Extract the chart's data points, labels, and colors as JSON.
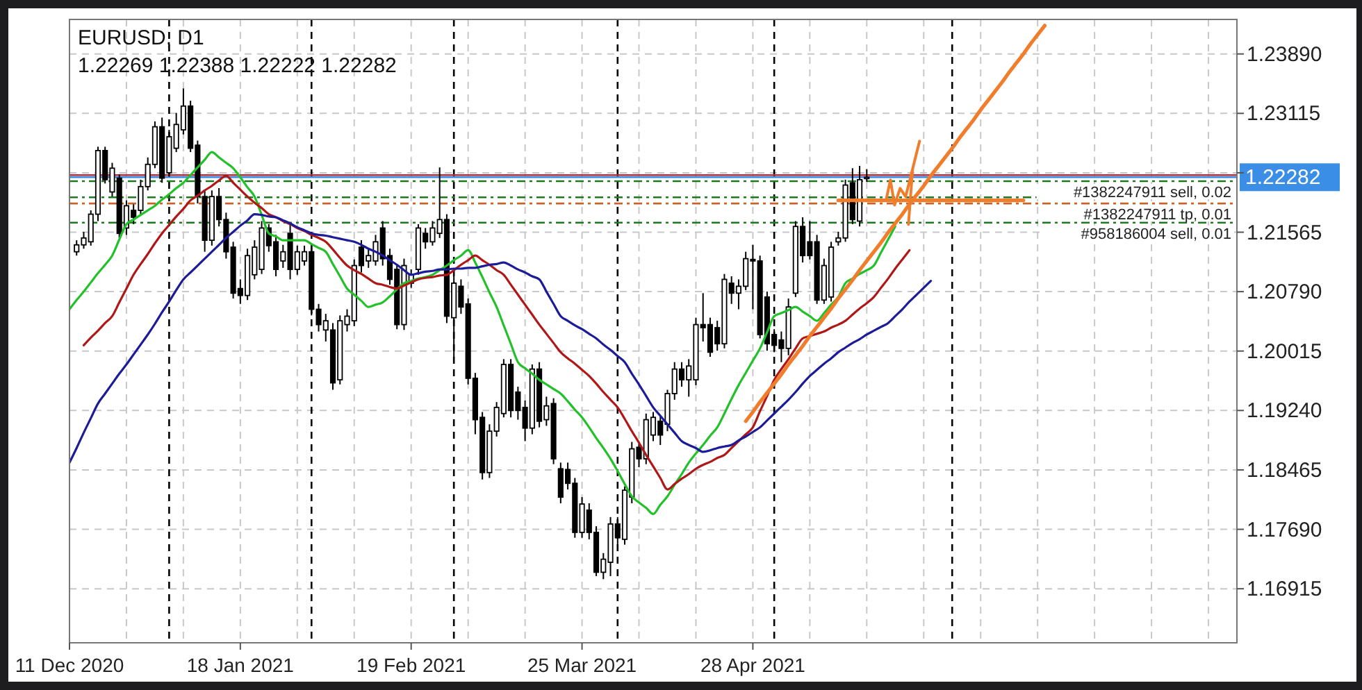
{
  "chart_data": {
    "type": "candlestick",
    "title": "EURUSD, D1",
    "subtitle": "1.22269 1.22388 1.22222 1.22282",
    "categories": [
      "11 Dec 2020",
      null,
      null,
      null,
      null,
      null,
      null,
      null,
      null,
      null,
      null,
      null,
      null,
      null,
      null,
      null,
      null,
      null,
      null,
      null,
      null,
      null,
      null,
      null,
      "18 Jan 2021",
      null,
      null,
      null,
      null,
      null,
      null,
      null,
      null,
      null,
      null,
      null,
      null,
      null,
      null,
      null,
      null,
      null,
      null,
      null,
      null,
      null,
      null,
      null,
      "19 Feb 2021",
      null,
      null,
      null,
      null,
      null,
      null,
      null,
      null,
      null,
      null,
      null,
      null,
      null,
      null,
      null,
      null,
      null,
      null,
      null,
      null,
      null,
      null,
      null,
      "25 Mar 2021",
      null,
      null,
      null,
      null,
      null,
      null,
      null,
      null,
      null,
      null,
      null,
      null,
      null,
      null,
      null,
      null,
      null,
      null,
      null,
      null,
      null,
      null,
      null,
      "28 Apr 2021",
      null,
      null,
      null,
      null,
      null,
      null,
      null,
      null,
      null,
      null,
      null,
      null,
      null,
      null,
      null,
      null,
      null,
      null,
      null,
      null,
      null,
      null,
      null,
      null,
      null,
      null,
      null,
      null,
      null,
      null,
      null,
      null,
      null,
      null,
      null,
      null,
      null,
      null,
      null,
      null,
      null,
      null,
      null,
      null,
      null,
      null,
      null,
      null,
      null,
      null,
      null,
      null,
      null,
      null,
      null,
      null,
      null,
      null,
      null,
      null,
      null,
      null,
      null,
      null,
      null,
      null,
      null,
      null
    ],
    "ohlc": [
      null,
      [
        1.2131,
        1.2146,
        1.2126,
        1.214
      ],
      [
        1.214,
        1.2157,
        1.2135,
        1.2149
      ],
      [
        1.2144,
        1.2185,
        1.2139,
        1.218
      ],
      [
        1.218,
        1.2268,
        1.2171,
        1.2263
      ],
      [
        1.2263,
        1.2268,
        1.222,
        1.2225
      ],
      [
        1.2209,
        1.2247,
        1.2203,
        1.224
      ],
      [
        1.2227,
        1.2232,
        1.2149,
        1.2155
      ],
      [
        1.2162,
        1.2198,
        1.2153,
        1.2191
      ],
      [
        1.2185,
        1.2193,
        1.2167,
        1.2176
      ],
      [
        1.2185,
        1.2225,
        1.218,
        1.2216
      ],
      [
        1.2216,
        1.2254,
        1.2211,
        1.2245
      ],
      [
        1.2245,
        1.2301,
        1.224,
        1.2294
      ],
      [
        1.2294,
        1.2306,
        1.2221,
        1.2227
      ],
      [
        1.2234,
        1.229,
        1.2229,
        1.2281
      ],
      [
        1.2266,
        1.2312,
        1.2261,
        1.2297
      ],
      [
        1.229,
        1.2344,
        1.2284,
        1.2321
      ],
      [
        1.2321,
        1.2328,
        1.2261,
        1.2266
      ],
      [
        1.227,
        1.2276,
        1.2194,
        1.2203
      ],
      [
        1.2203,
        1.2212,
        1.2131,
        1.2146
      ],
      [
        1.2146,
        1.2211,
        1.2139,
        1.2203
      ],
      [
        1.2203,
        1.2214,
        1.2164,
        1.2173
      ],
      [
        1.2173,
        1.2182,
        1.2122,
        1.2131
      ],
      [
        1.2137,
        1.2144,
        1.207,
        1.2077
      ],
      [
        1.2083,
        1.2095,
        1.2063,
        1.2074
      ],
      [
        1.2074,
        1.2135,
        1.2068,
        1.2126
      ],
      [
        1.2101,
        1.2146,
        1.2095,
        1.2137
      ],
      [
        1.2108,
        1.2171,
        1.2102,
        1.2162
      ],
      [
        1.2162,
        1.2167,
        1.2131,
        1.2139
      ],
      [
        1.2144,
        1.2153,
        1.2099,
        1.2108
      ],
      [
        1.2119,
        1.214,
        1.211,
        1.2131
      ],
      [
        1.2155,
        1.2167,
        1.2095,
        1.2108
      ],
      [
        1.2108,
        1.2139,
        1.2101,
        1.2131
      ],
      [
        1.2119,
        1.2139,
        1.2113,
        1.2131
      ],
      [
        1.2131,
        1.214,
        1.2048,
        1.2056
      ],
      [
        1.2056,
        1.2063,
        1.2027,
        1.2036
      ],
      [
        1.2029,
        1.205,
        1.2014,
        1.2041
      ],
      [
        1.2029,
        1.2038,
        1.1951,
        1.196
      ],
      [
        1.1964,
        1.2048,
        1.1958,
        1.2041
      ],
      [
        1.2036,
        1.2056,
        1.2027,
        1.2047
      ],
      [
        1.2041,
        1.2121,
        1.2034,
        1.2113
      ],
      [
        1.2137,
        1.2146,
        1.2104,
        1.2113
      ],
      [
        1.2119,
        1.2135,
        1.211,
        1.2126
      ],
      [
        1.2119,
        1.2153,
        1.2113,
        1.2144
      ],
      [
        1.2162,
        1.2171,
        1.2113,
        1.2122
      ],
      [
        1.2126,
        1.2135,
        1.2088,
        1.2095
      ],
      [
        1.2108,
        1.2115,
        1.203,
        1.2036
      ],
      [
        1.2036,
        1.2122,
        1.2029,
        1.2113
      ],
      [
        1.209,
        1.2108,
        1.2084,
        1.2101
      ],
      [
        1.2108,
        1.2167,
        1.2101,
        1.2162
      ],
      [
        1.2155,
        1.2162,
        1.2135,
        1.2144
      ],
      [
        1.2144,
        1.2171,
        1.2139,
        1.2162
      ],
      [
        1.2155,
        1.2241,
        1.2149,
        1.2173
      ],
      [
        1.2173,
        1.218,
        1.2038,
        1.2047
      ],
      [
        1.2045,
        1.2099,
        1.1993,
        1.209
      ],
      [
        1.2086,
        1.2095,
        1.205,
        1.2059
      ],
      [
        1.2063,
        1.207,
        1.1958,
        1.1966
      ],
      [
        1.1966,
        1.1973,
        1.1893,
        1.1912
      ],
      [
        1.1915,
        1.1922,
        1.1834,
        1.1843
      ],
      [
        1.1843,
        1.1906,
        1.1836,
        1.1897
      ],
      [
        1.1897,
        1.1935,
        1.189,
        1.1928
      ],
      [
        1.192,
        1.1991,
        1.1915,
        1.1984
      ],
      [
        1.1984,
        1.1991,
        1.1915,
        1.1924
      ],
      [
        1.1948,
        1.1955,
        1.1912,
        1.1924
      ],
      [
        1.1928,
        1.1937,
        1.1884,
        1.1901
      ],
      [
        1.1901,
        1.1984,
        1.1893,
        1.1978
      ],
      [
        1.1978,
        1.1987,
        1.1902,
        1.191
      ],
      [
        1.1912,
        1.1942,
        1.1904,
        1.193
      ],
      [
        1.1933,
        1.194,
        1.1854,
        1.1861
      ],
      [
        1.1848,
        1.1856,
        1.1803,
        1.1811
      ],
      [
        1.1847,
        1.1856,
        1.1821,
        1.1829
      ],
      [
        1.1829,
        1.1836,
        1.1758,
        1.1765
      ],
      [
        1.1765,
        1.1811,
        1.1758,
        1.1802
      ],
      [
        1.1794,
        1.1803,
        1.1756,
        1.1765
      ],
      [
        1.1765,
        1.1773,
        1.1708,
        1.1713
      ],
      [
        1.1713,
        1.1738,
        1.1704,
        1.173
      ],
      [
        1.1726,
        1.1785,
        1.1708,
        1.1776
      ],
      [
        1.1776,
        1.1785,
        1.1749,
        1.1758
      ],
      [
        1.1756,
        1.1825,
        1.1749,
        1.182
      ],
      [
        1.1811,
        1.1883,
        1.1803,
        1.1874
      ],
      [
        1.1876,
        1.1883,
        1.185,
        1.1861
      ],
      [
        1.1861,
        1.192,
        1.1854,
        1.1912
      ],
      [
        1.1892,
        1.1922,
        1.1884,
        1.1915
      ],
      [
        1.191,
        1.1917,
        1.1879,
        1.1892
      ],
      [
        1.1906,
        1.1951,
        1.1897,
        1.1946
      ],
      [
        1.1946,
        1.1987,
        1.1938,
        1.1978
      ],
      [
        1.1978,
        1.1987,
        1.1955,
        1.1964
      ],
      [
        1.1964,
        1.1991,
        1.1942,
        1.1982
      ],
      [
        1.1964,
        1.2045,
        1.1957,
        1.2036
      ],
      [
        1.2036,
        1.2077,
        1.2014,
        1.2032
      ],
      [
        1.2036,
        1.2045,
        1.1994,
        1.2
      ],
      [
        1.2032,
        1.2041,
        1.2002,
        1.2011
      ],
      [
        1.2011,
        1.2102,
        1.2005,
        1.2095
      ],
      [
        1.209,
        1.2099,
        1.2063,
        1.2077
      ],
      [
        1.2077,
        1.2095,
        1.2056,
        1.2086
      ],
      [
        1.2086,
        1.2131,
        1.2081,
        1.2122
      ],
      [
        1.2121,
        1.214,
        1.2056,
        1.2119
      ],
      [
        1.2119,
        1.2126,
        1.2018,
        1.2023
      ],
      [
        1.2072,
        1.2079,
        1.2002,
        1.2011
      ],
      [
        1.2023,
        1.203,
        1.2,
        1.2009
      ],
      [
        1.2016,
        1.2027,
        1.1987,
        1.2005
      ],
      [
        1.2005,
        1.207,
        1.1996,
        1.2059
      ],
      [
        1.2077,
        1.2171,
        1.2072,
        1.2164
      ],
      [
        1.2164,
        1.2176,
        1.2117,
        1.2126
      ],
      [
        1.2144,
        1.2171,
        1.2121,
        1.2126
      ],
      [
        1.2144,
        1.2153,
        1.2063,
        1.2068
      ],
      [
        1.2068,
        1.2122,
        1.2063,
        1.2113
      ],
      [
        1.2072,
        1.2144,
        1.2066,
        1.2137
      ],
      [
        1.2144,
        1.2157,
        1.2139,
        1.2149
      ],
      [
        1.2149,
        1.2225,
        1.2144,
        1.2218
      ],
      [
        1.2221,
        1.224,
        1.2167,
        1.2173
      ],
      [
        1.2171,
        1.2243,
        1.2164,
        1.2225
      ],
      [
        1.22269,
        1.22388,
        1.22222,
        1.22282
      ],
      null,
      null,
      null,
      null,
      null,
      null,
      null,
      null,
      null,
      null,
      null,
      null,
      null,
      null,
      null,
      null,
      null,
      null,
      null,
      null,
      null,
      null,
      null,
      null,
      null,
      null,
      null,
      null,
      null,
      null,
      null,
      null,
      null,
      null,
      null,
      null,
      null,
      null,
      null,
      null,
      null,
      null,
      null,
      null,
      null,
      null,
      null,
      null,
      null,
      null,
      null,
      null
    ],
    "series": [
      {
        "type": "line",
        "color": "#22c12a",
        "values": [
          1.2056,
          1.2068,
          1.2079,
          1.2091,
          1.2103,
          1.2114,
          1.2126,
          1.2147,
          1.2167,
          1.2173,
          1.2179,
          1.2185,
          1.2191,
          1.2199,
          1.2206,
          1.2214,
          1.2221,
          1.2231,
          1.2241,
          1.2251,
          1.2261,
          1.2254,
          1.2247,
          1.224,
          1.2228,
          1.2215,
          1.2203,
          1.2179,
          1.2155,
          1.2151,
          1.2146,
          1.2146,
          1.2146,
          1.2146,
          1.2141,
          1.2136,
          1.2131,
          1.2115,
          1.2099,
          1.2083,
          1.2075,
          1.2067,
          1.2059,
          1.2062,
          1.2065,
          1.2073,
          1.2082,
          1.209,
          1.2093,
          1.2096,
          1.2098,
          1.2101,
          1.2107,
          1.2113,
          1.212,
          1.2126,
          1.2133,
          1.2117,
          1.2098,
          1.2078,
          1.2059,
          1.2035,
          1.2011,
          1.1987,
          1.1979,
          1.1972,
          1.1964,
          1.1958,
          1.1952,
          1.1946,
          1.1936,
          1.1925,
          1.1915,
          1.1902,
          1.1888,
          1.1875,
          1.1861,
          1.1845,
          1.1828,
          1.1812,
          1.1804,
          1.1797,
          1.1789,
          1.1801,
          1.1812,
          1.1827,
          1.1841,
          1.1856,
          1.1868,
          1.1879,
          1.1891,
          1.1902,
          1.192,
          1.1939,
          1.1957,
          1.1973,
          1.1989,
          1.2005,
          1.2026,
          1.2047,
          1.2051,
          1.2055,
          1.2059,
          1.2053,
          1.2047,
          1.2041,
          1.2051,
          1.2062,
          1.2072,
          1.209,
          1.2096,
          1.2102,
          1.2107,
          1.2113,
          1.213,
          1.2147,
          1.2164,
          null,
          null,
          null,
          null,
          null,
          null,
          null,
          null,
          null,
          null,
          null,
          null,
          null,
          null,
          null,
          null,
          null,
          null,
          null,
          null,
          null,
          null,
          null,
          null,
          null,
          null,
          null,
          null,
          null,
          null,
          null,
          null,
          null,
          null,
          null,
          null,
          null,
          null,
          null,
          null,
          null,
          null,
          null,
          null,
          null,
          null,
          null,
          null
        ]
      },
      {
        "type": "line",
        "color": "#b01818",
        "values": [
          null,
          null,
          1.2009,
          1.2019,
          1.2028,
          1.2038,
          1.2047,
          1.2065,
          1.2083,
          1.2101,
          1.2115,
          1.2128,
          1.2142,
          1.2155,
          1.2166,
          1.2177,
          1.2187,
          1.2198,
          1.2204,
          1.2211,
          1.2217,
          1.2224,
          1.223,
          1.2221,
          1.2212,
          1.2203,
          1.2195,
          1.2188,
          1.218,
          1.2176,
          1.2171,
          1.2167,
          1.2162,
          1.2158,
          1.2153,
          1.2149,
          1.2144,
          1.2134,
          1.2123,
          1.2113,
          1.2107,
          1.2102,
          1.2096,
          1.209,
          1.2088,
          1.2085,
          1.2083,
          1.2087,
          1.2091,
          1.2095,
          1.2097,
          1.2098,
          1.21,
          1.2101,
          1.2107,
          1.2114,
          1.212,
          1.2126,
          1.212,
          1.2114,
          1.2107,
          1.2101,
          1.2088,
          1.2075,
          1.2062,
          1.2049,
          1.2036,
          1.2024,
          1.2012,
          1.2,
          1.1992,
          1.1985,
          1.1977,
          1.1969,
          1.1959,
          1.1948,
          1.1938,
          1.1928,
          1.1913,
          1.1897,
          1.1882,
          1.1866,
          1.1851,
          1.1836,
          1.1821,
          1.1828,
          1.1835,
          1.1841,
          1.1848,
          1.1853,
          1.1857,
          1.1862,
          1.1866,
          1.1875,
          1.1884,
          1.1893,
          1.1902,
          1.1923,
          1.1943,
          1.1964,
          1.1978,
          1.1991,
          1.2005,
          1.2018,
          1.2021,
          1.2024,
          1.2027,
          1.2032,
          1.2036,
          1.2041,
          1.2049,
          1.2057,
          1.2064,
          1.2072,
          1.2084,
          1.2096,
          1.2109,
          1.2121,
          1.2133,
          null,
          null,
          null,
          null,
          null,
          null,
          null,
          null,
          null,
          null,
          null,
          null,
          null,
          null,
          null,
          null,
          null,
          null,
          null,
          null,
          null,
          null,
          null,
          null,
          null,
          null,
          null,
          null,
          null,
          null,
          null,
          null,
          null,
          null,
          null,
          null,
          null,
          null,
          null,
          null,
          null,
          null,
          null,
          null,
          null,
          null
        ]
      },
      {
        "type": "line",
        "color": "#1c1c98",
        "values": [
          1.1856,
          1.1875,
          1.1895,
          1.1914,
          1.1933,
          1.1946,
          1.1959,
          1.1972,
          1.1984,
          1.1997,
          1.201,
          1.2023,
          1.2037,
          1.2052,
          1.2066,
          1.2081,
          1.2095,
          1.2104,
          1.2113,
          1.2122,
          1.2131,
          1.214,
          1.2149,
          1.2157,
          1.2165,
          1.2172,
          1.218,
          1.2179,
          1.2177,
          1.2176,
          1.2172,
          1.2168,
          1.2163,
          1.2159,
          1.2155,
          1.2153,
          1.2152,
          1.215,
          1.2148,
          1.2146,
          1.2144,
          1.214,
          1.2135,
          1.2131,
          1.2126,
          1.212,
          1.2114,
          1.2107,
          1.2101,
          1.2103,
          1.2105,
          1.2106,
          1.2108,
          1.2108,
          1.2109,
          1.2109,
          1.211,
          1.211,
          1.2112,
          1.2114,
          1.2115,
          1.2117,
          1.2113,
          1.2108,
          1.2104,
          1.2099,
          1.2095,
          1.2079,
          1.2063,
          1.2047,
          1.2041,
          1.2035,
          1.203,
          1.2024,
          1.2018,
          1.201,
          1.2003,
          1.1995,
          1.1987,
          1.1972,
          1.1958,
          1.1943,
          1.1928,
          1.1917,
          1.1906,
          1.1895,
          1.1884,
          1.1879,
          1.1875,
          1.187,
          1.1872,
          1.1875,
          1.1877,
          1.1879,
          1.1885,
          1.189,
          1.1896,
          1.1902,
          1.1911,
          1.192,
          1.1929,
          1.1938,
          1.1948,
          1.1959,
          1.1969,
          1.1977,
          1.1985,
          1.1992,
          1.2,
          1.2006,
          1.2012,
          1.2017,
          1.2023,
          1.2028,
          1.2033,
          1.2038,
          1.2047,
          1.2056,
          1.2066,
          1.2075,
          1.2084,
          1.2093,
          null,
          null,
          null,
          null,
          null,
          null,
          null,
          null,
          null,
          null,
          null,
          null,
          null,
          null,
          null,
          null,
          null,
          null,
          null,
          null,
          null,
          null,
          null,
          null,
          null,
          null,
          null,
          null,
          null,
          null,
          null,
          null,
          null,
          null,
          null,
          null,
          null,
          null,
          null,
          null,
          null,
          null,
          null
        ]
      },
      {
        "type": "line",
        "color": "#f07d2c",
        "values": [
          null,
          null,
          null,
          null,
          null,
          null,
          null,
          null,
          null,
          null,
          null,
          null,
          null,
          null,
          null,
          null,
          null,
          null,
          null,
          null,
          null,
          null,
          null,
          null,
          null,
          null,
          null,
          null,
          null,
          null,
          null,
          null,
          null,
          null,
          null,
          null,
          null,
          null,
          null,
          null,
          null,
          null,
          null,
          null,
          null,
          null,
          null,
          null,
          null,
          null,
          null,
          null,
          null,
          null,
          null,
          null,
          null,
          null,
          null,
          null,
          null,
          null,
          null,
          null,
          null,
          null,
          null,
          null,
          null,
          null,
          null,
          null,
          null,
          null,
          null,
          null,
          null,
          null,
          null,
          null,
          null,
          null,
          null,
          null,
          null,
          null,
          null,
          null,
          null,
          null,
          null,
          null,
          null,
          null,
          null,
          1.191,
          1.1922,
          1.1935,
          1.1947,
          1.1959,
          1.1971,
          1.1984,
          1.1996,
          1.2008,
          1.2021,
          1.2033,
          1.2045,
          1.2057,
          1.207,
          1.2082,
          1.2094,
          1.2107,
          1.2119,
          1.2131,
          1.2143,
          1.2156,
          1.2168,
          1.218,
          1.2193,
          1.2205,
          1.2217,
          1.223,
          1.2242,
          1.2254,
          1.2266,
          1.2279,
          1.2291,
          1.2303,
          1.2316,
          1.2328,
          1.234,
          1.2352,
          1.2365,
          1.2377,
          1.2389,
          1.2402,
          1.2414,
          1.2426,
          null,
          null,
          null,
          null,
          null,
          null,
          null,
          null,
          null,
          null,
          null,
          null,
          null,
          null,
          null,
          null,
          null,
          null,
          null,
          null,
          null,
          null,
          null,
          null,
          null,
          null,
          null
        ]
      },
      {
        "type": "line",
        "color": "#f07d2c",
        "values": [
          null,
          null,
          null,
          null,
          null,
          null,
          null,
          null,
          null,
          null,
          null,
          null,
          null,
          null,
          null,
          null,
          null,
          null,
          null,
          null,
          null,
          null,
          null,
          null,
          null,
          null,
          null,
          null,
          null,
          null,
          null,
          null,
          null,
          null,
          null,
          null,
          null,
          null,
          null,
          null,
          null,
          null,
          null,
          null,
          null,
          null,
          null,
          null,
          null,
          null,
          null,
          null,
          null,
          null,
          null,
          null,
          null,
          null,
          null,
          null,
          null,
          null,
          null,
          null,
          null,
          null,
          null,
          null,
          null,
          null,
          null,
          null,
          null,
          null,
          null,
          null,
          null,
          null,
          null,
          null,
          null,
          null,
          null,
          null,
          null,
          null,
          null,
          null,
          null,
          null,
          null,
          null,
          null,
          null,
          null,
          null,
          null,
          null,
          null,
          null,
          null,
          null,
          null,
          null,
          null,
          null,
          null,
          null,
          1.2198,
          1.2198,
          1.2198,
          1.2198,
          1.2198,
          1.2198,
          1.2198,
          1.2198,
          1.2198,
          1.2198,
          1.2198,
          1.2198,
          1.2198,
          1.2198,
          1.2198,
          1.2198,
          1.2198,
          1.2198,
          1.2198,
          1.2198,
          1.2198,
          1.2198,
          1.2198,
          1.2198,
          1.2198,
          1.2198,
          1.2198,
          null,
          null,
          null,
          null,
          null,
          null,
          null,
          null,
          null,
          null,
          null,
          null,
          null,
          null,
          null,
          null,
          null,
          null,
          null,
          null,
          null,
          null,
          null,
          null,
          null,
          null,
          null,
          null,
          null,
          null
        ]
      }
    ],
    "ylim": [
      1.1621,
      1.2434
    ],
    "yticks": [
      {
        "value": 1.16915,
        "label": "1.16915"
      },
      {
        "value": 1.1769,
        "label": "1.17690"
      },
      {
        "value": 1.18465,
        "label": "1.18465"
      },
      {
        "value": 1.1924,
        "label": "1.19240"
      },
      {
        "value": 1.20015,
        "label": "1.20015"
      },
      {
        "value": 1.2079,
        "label": "1.20790"
      },
      {
        "value": 1.21565,
        "label": "1.21565"
      },
      {
        "value": 1.2234,
        "label": null
      },
      {
        "value": 1.23115,
        "label": "1.23115"
      },
      {
        "value": 1.2389,
        "label": "1.23890"
      }
    ],
    "grid": true,
    "ref_lines": [
      {
        "axis": "y",
        "value": 1.2231,
        "color": "#b03040"
      },
      {
        "axis": "y",
        "value": 1.22282,
        "label": "1.22282",
        "color": "#3a8ee6"
      },
      {
        "axis": "y",
        "value": 1.2223,
        "label": "#1382247911 sell, 0.02",
        "color": "#1e7a1e",
        "line_style": "dashed"
      },
      {
        "axis": "y",
        "value": 1.2202,
        "color": "#1e7a1e",
        "line_style": "dashed"
      },
      {
        "axis": "y",
        "value": 1.2194,
        "label": "#1382247911 tp, 0.01",
        "color": "#c86428",
        "line_style": "dashed"
      },
      {
        "axis": "y",
        "value": 1.2169,
        "label": "#958186004 sell, 0.01",
        "color": "#1e7a1e",
        "line_style": "dashed"
      }
    ]
  }
}
